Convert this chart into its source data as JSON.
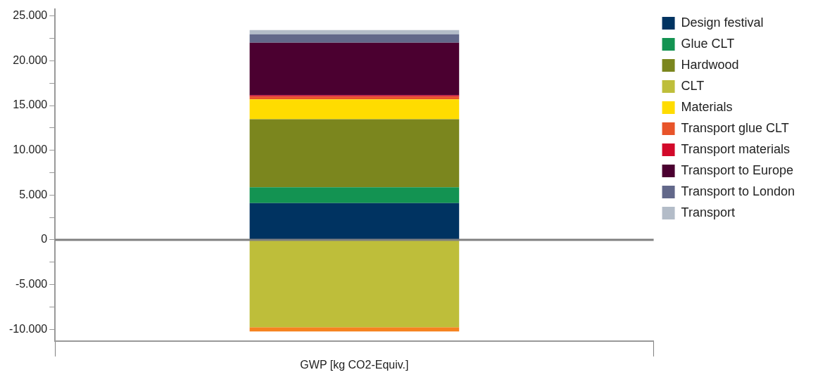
{
  "chart_data": {
    "type": "bar",
    "stacked": true,
    "categories": [
      "GWP [kg CO2-Equiv.]"
    ],
    "series": [
      {
        "name": "Design festival",
        "color": "#003361",
        "values": [
          4100
        ]
      },
      {
        "name": "Glue CLT",
        "color": "#139352",
        "values": [
          1770
        ]
      },
      {
        "name": "Hardwood",
        "color": "#7b861e",
        "values": [
          7600
        ]
      },
      {
        "name": "CLT",
        "color": "#bebe3a",
        "values": [
          -9770
        ]
      },
      {
        "name": "Materials",
        "color": "#ffdc00",
        "values": [
          2230
        ]
      },
      {
        "color": "#f58220",
        "values": [
          -460
        ]
      },
      {
        "name": "Transport glue CLT",
        "color": "#e8542a",
        "values": [
          300
        ]
      },
      {
        "name": "Transport materials",
        "color": "#d2092a",
        "values": [
          150
        ]
      },
      {
        "name": "Transport to Europe",
        "color": "#4b0030",
        "values": [
          5870
        ]
      },
      {
        "name": "Transport to London",
        "color": "#62688a",
        "values": [
          940
        ]
      },
      {
        "name": "Transport",
        "color": "#b3bcc8",
        "values": [
          480
        ]
      }
    ],
    "ylim": [
      -11300,
      25800
    ],
    "yticks": [
      {
        "value": -10000,
        "label": "-10.000"
      },
      {
        "value": -7500,
        "label": null
      },
      {
        "value": -5000,
        "label": "-5.000"
      },
      {
        "value": -2500,
        "label": null
      },
      {
        "value": 0,
        "label": "0"
      },
      {
        "value": 2500,
        "label": null
      },
      {
        "value": 5000,
        "label": "5.000"
      },
      {
        "value": 7500,
        "label": null
      },
      {
        "value": 10000,
        "label": "10.000"
      },
      {
        "value": 12500,
        "label": null
      },
      {
        "value": 15000,
        "label": "15.000"
      },
      {
        "value": 17500,
        "label": null
      },
      {
        "value": 20000,
        "label": "20.000"
      },
      {
        "value": 22500,
        "label": null
      },
      {
        "value": 25000,
        "label": "25.000"
      }
    ],
    "ref_lines": [
      {
        "axis": "y",
        "value": 0,
        "color": "#808080"
      }
    ],
    "grid": false,
    "legend": "right"
  }
}
